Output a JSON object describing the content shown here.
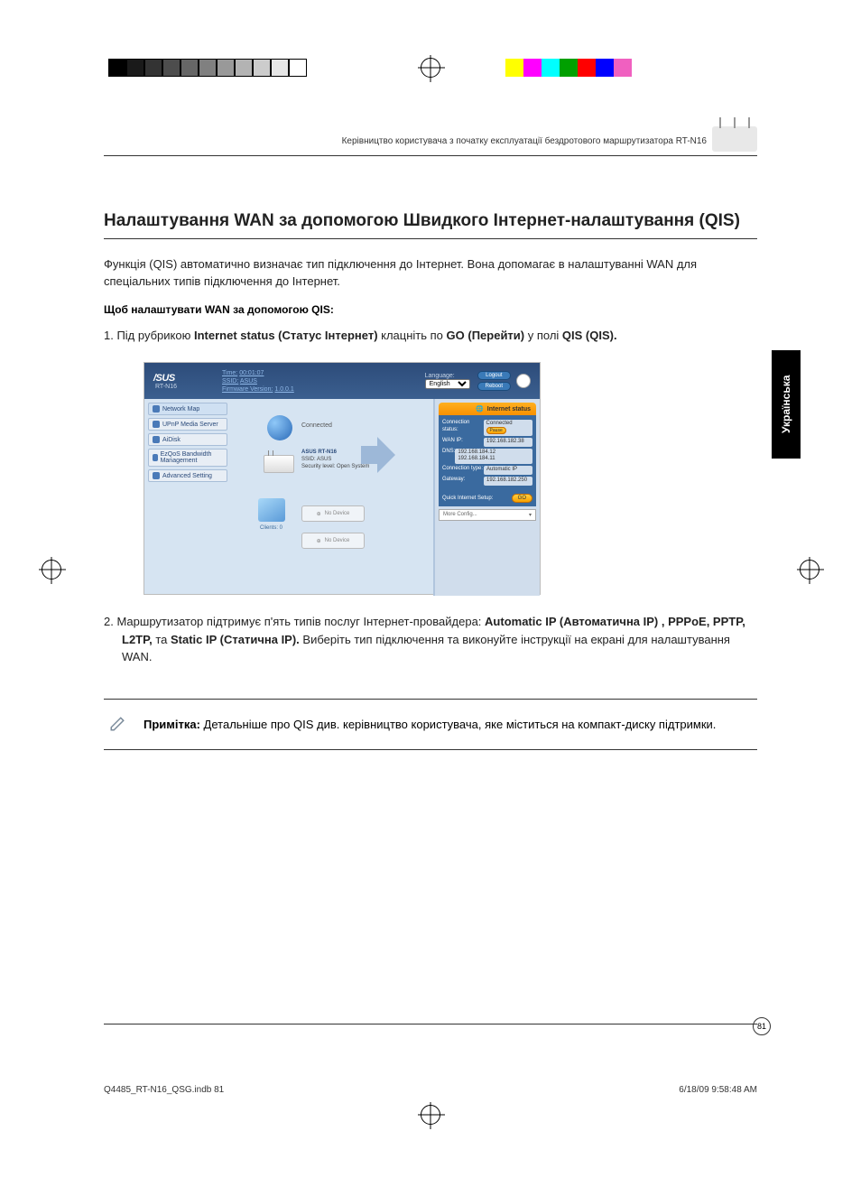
{
  "printer": {
    "left_bar_colors": [
      "#000",
      "#1a1a1a",
      "#333",
      "#4d4d4d",
      "#666",
      "#808080",
      "#999",
      "#b3b3b3",
      "#ccc",
      "#e6e6e6",
      "#fff"
    ],
    "right_bar_colors": [
      "#ffff00",
      "#ff00ff",
      "#00ffff",
      "#00a000",
      "#ff0000",
      "#0000ff",
      "#f060c0",
      "#fff"
    ]
  },
  "header_text": "Керівництво користувача з початку експлуатації бездротового маршрутизатора RT-N16",
  "lang_tab": "Українська",
  "title": "Налаштування WAN за допомогою Швидкого Інтернет-налаштування (QIS)",
  "lead": "Функція (QIS) автоматично визначає тип підключення до Інтернет. Вона допомагає в налаштуванні WAN для спеціальних типів підключення до Інтернет.",
  "sub": "Щоб налаштувати WAN за допомогою QIS:",
  "step1_before": "1.  Під рубрикою ",
  "step1_b1": "Internet status (Статус Інтернет)",
  "step1_mid": " клацніть по ",
  "step1_b2": "GO (Перейти)",
  "step1_mid2": " у полі ",
  "step1_b3": "QIS (QIS).",
  "ss": {
    "logo": "/SUS",
    "model": "RT-N16",
    "time_label": "Time:",
    "time": "00:01:07",
    "ssid_label": "SSID:",
    "ssid": "ASUS",
    "fw_label": "Firmware Version:",
    "fw": "1.0.0.1",
    "lang_label": "Language:",
    "lang_value": "English",
    "logout": "Logout",
    "reboot": "Reboot",
    "nav": [
      "Network Map",
      "UPnP Media Server",
      "AiDisk",
      "EzQoS Bandwidth Management",
      "Advanced Setting"
    ],
    "connected": "Connected",
    "router_name": "ASUS RT-N16",
    "router_ssid": "SSID: ASUS",
    "router_sec": "Security level: Open System",
    "clients": "Clients: 0",
    "nodev": "No Device",
    "status_tab": "Internet status",
    "rows": [
      {
        "k": "Connection status:",
        "v": "Connected"
      },
      {
        "k": "WAN IP:",
        "v": "192.168.182.38"
      },
      {
        "k": "DNS:",
        "v": "192.168.184.12 192.168.184.11"
      },
      {
        "k": "Connection type:",
        "v": "Automatic IP"
      },
      {
        "k": "Gateway:",
        "v": "192.168.182.250"
      }
    ],
    "qis_label": "Quick Internet Setup:",
    "go": "GO",
    "pause": "Pause",
    "more": "More Config..."
  },
  "step2_before": "2.  Маршрутизатор підтримує п'ять типів послуг Інтернет-провайдера: ",
  "step2_b1": "Automatic IP (Автоматична ІР) , PPPoE, PPTP, L2TP,",
  "step2_mid": " та ",
  "step2_b2": "Static IP (Статична ІР).",
  "step2_after": " Виберіть тип підключення та виконуйте інструкції на екрані для налаштування WAN.",
  "note_b": "Примітка:",
  "note_text": " Детальніше про QIS див. керівництво користувача, яке міститься на компакт-диску підтримки.",
  "page_num": "81",
  "slug_left": "Q4485_RT-N16_QSG.indb   81",
  "slug_right": "6/18/09   9:58:48 AM"
}
